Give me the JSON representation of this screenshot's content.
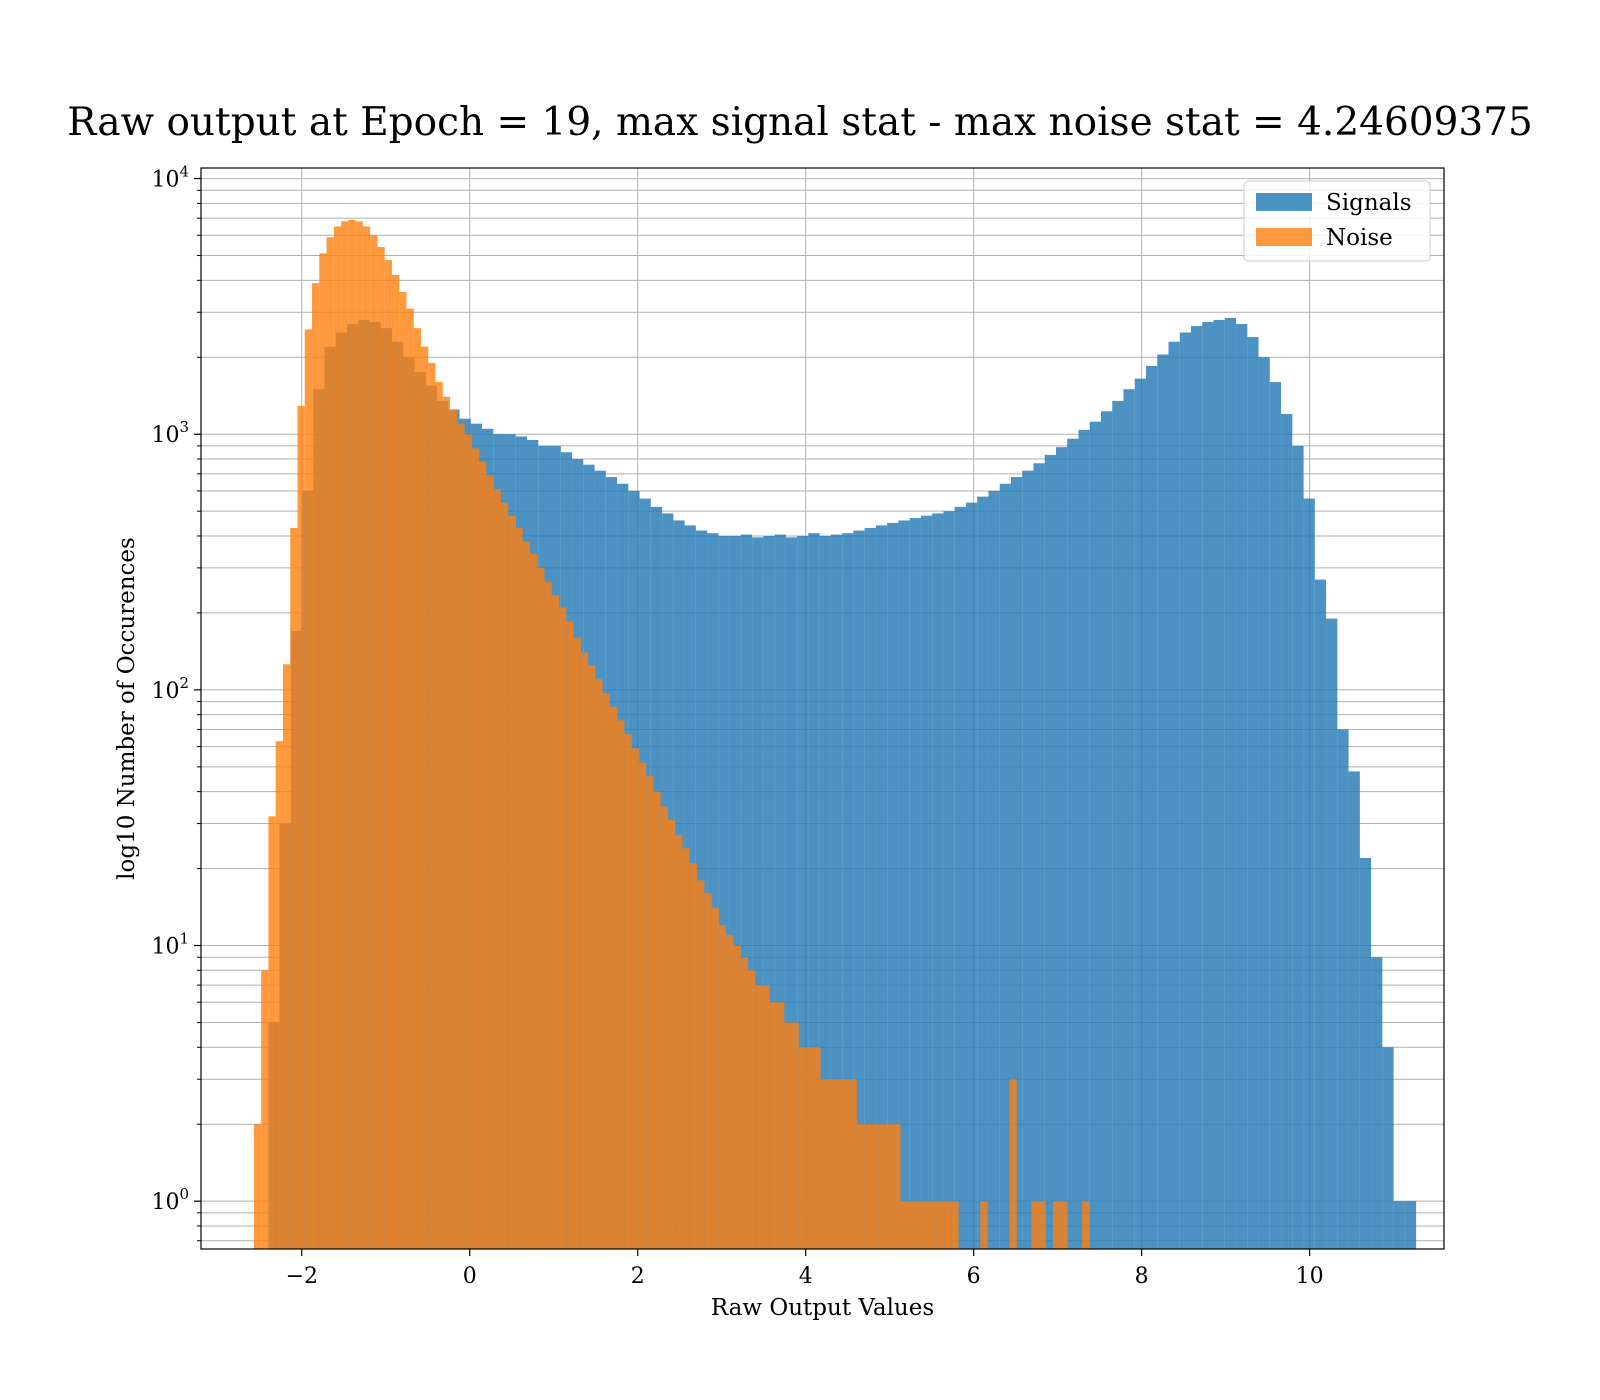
{
  "chart_data": {
    "type": "bar",
    "title": "Raw output at Epoch = 19, max signal stat - max noise stat = 4.24609375",
    "xlabel": "Raw Output Values",
    "ylabel": "log10 Number of Occurences",
    "xlim": [
      -3.2,
      11.6
    ],
    "ylim": [
      0.65,
      11000
    ],
    "yscale": "log",
    "x_ticks": [
      -2,
      0,
      2,
      4,
      6,
      8,
      10
    ],
    "x_tick_labels": [
      "−2",
      "0",
      "2",
      "4",
      "6",
      "8",
      "10"
    ],
    "y_ticks": [
      {
        "value": 1,
        "base": "10",
        "exp": "0"
      },
      {
        "value": 10,
        "base": "10",
        "exp": "1"
      },
      {
        "value": 100,
        "base": "10",
        "exp": "2"
      },
      {
        "value": 1000,
        "base": "10",
        "exp": "3"
      },
      {
        "value": 10000,
        "base": "10",
        "exp": "4"
      }
    ],
    "grid": true,
    "legend_position": "top-right",
    "series": [
      {
        "name": "Signals",
        "color": "#1f77b4",
        "alpha": 0.8,
        "bin_start": -2.4,
        "bin_width": 0.134,
        "values": [
          5,
          30,
          170,
          600,
          1500,
          2200,
          2500,
          2700,
          2800,
          2750,
          2600,
          2300,
          2000,
          1750,
          1550,
          1350,
          1250,
          1150,
          1100,
          1050,
          1000,
          1000,
          980,
          950,
          900,
          900,
          850,
          800,
          760,
          720,
          680,
          640,
          600,
          560,
          520,
          490,
          460,
          440,
          420,
          410,
          400,
          400,
          405,
          395,
          400,
          405,
          395,
          400,
          410,
          400,
          405,
          410,
          420,
          430,
          440,
          450,
          460,
          470,
          480,
          490,
          500,
          520,
          540,
          570,
          600,
          640,
          680,
          720,
          770,
          830,
          890,
          960,
          1040,
          1120,
          1230,
          1350,
          1500,
          1650,
          1850,
          2050,
          2300,
          2500,
          2650,
          2750,
          2800,
          2850,
          2700,
          2400,
          2000,
          1600,
          1200,
          900,
          560,
          270,
          190,
          70,
          48,
          22,
          9,
          4,
          1,
          1
        ]
      },
      {
        "name": "Noise",
        "color": "#ff7f0e",
        "alpha": 0.8,
        "bin_start": -2.57,
        "bin_width": 0.0865,
        "values": [
          2,
          8,
          32,
          63,
          126,
          430,
          1290,
          2570,
          3900,
          5100,
          5900,
          6500,
          6800,
          6900,
          6800,
          6500,
          6000,
          5400,
          4800,
          4200,
          3600,
          3100,
          2600,
          2200,
          1900,
          1600,
          1400,
          1250,
          1100,
          1000,
          880,
          780,
          690,
          610,
          540,
          480,
          430,
          380,
          340,
          300,
          265,
          235,
          210,
          185,
          160,
          140,
          125,
          110,
          97,
          86,
          76,
          67,
          59,
          52,
          46,
          40,
          35,
          31,
          27,
          24,
          21,
          18,
          16,
          14,
          12,
          11,
          10,
          9,
          8,
          7,
          7,
          6,
          6,
          5,
          5,
          4,
          4,
          4,
          3,
          3,
          3,
          3,
          3,
          2,
          2,
          2,
          2,
          2,
          2,
          1,
          1,
          1,
          1,
          1,
          1,
          1,
          1,
          0,
          0,
          0,
          1,
          0,
          0,
          0,
          3,
          0,
          0,
          1,
          1,
          0,
          1,
          1,
          0,
          0,
          1
        ]
      }
    ]
  }
}
